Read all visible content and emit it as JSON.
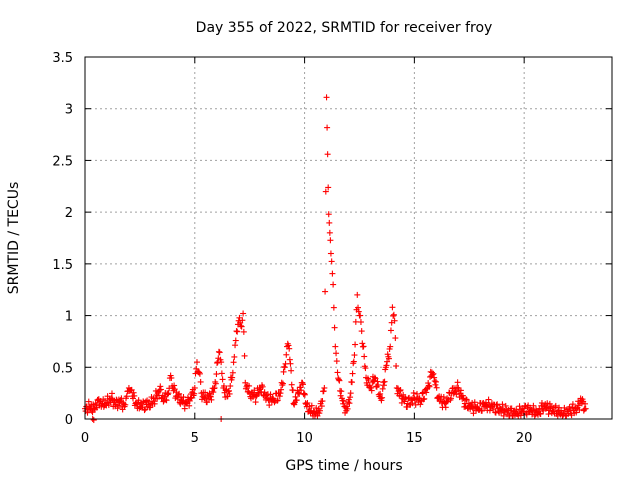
{
  "chart_data": {
    "type": "scatter",
    "title": "Day 355 of 2022, SRMTID for receiver froy",
    "xlabel": "GPS time / hours",
    "ylabel": "SRMTID / TECUs",
    "xlim": [
      0,
      24
    ],
    "ylim": [
      0,
      3.5
    ],
    "x_ticks": [
      "0",
      "5",
      "10",
      "15",
      "20"
    ],
    "y_ticks": [
      "0",
      "0.5",
      "1",
      "1.5",
      "2",
      "2.5",
      "3",
      "3.5"
    ],
    "grid": true,
    "marker": "+",
    "marker_color": "#ff0000",
    "series": [
      {
        "name": "SRMTID",
        "x": [
          0.0,
          0.2,
          0.4,
          0.6,
          0.8,
          1.0,
          1.2,
          1.4,
          1.6,
          1.8,
          1.9,
          2.0,
          2.1,
          2.3,
          2.5,
          2.8,
          3.0,
          3.2,
          3.4,
          3.6,
          3.8,
          3.9,
          4.0,
          4.2,
          4.4,
          4.6,
          4.8,
          5.0,
          5.1,
          5.2,
          5.3,
          5.5,
          5.7,
          5.9,
          6.1,
          6.2,
          6.3,
          6.5,
          6.7,
          6.8,
          6.9,
          7.0,
          7.1,
          7.2,
          7.3,
          7.5,
          7.8,
          8.0,
          8.3,
          8.6,
          8.9,
          9.1,
          9.2,
          9.3,
          9.5,
          9.7,
          9.9,
          10.1,
          10.3,
          10.5,
          10.7,
          10.9,
          11.0,
          11.05,
          11.1,
          11.15,
          11.2,
          11.3,
          11.4,
          11.5,
          11.7,
          11.9,
          12.1,
          12.3,
          12.4,
          12.5,
          12.6,
          12.8,
          13.0,
          13.2,
          13.5,
          13.7,
          13.9,
          14.0,
          14.1,
          14.2,
          14.4,
          14.7,
          15.0,
          15.3,
          15.6,
          15.8,
          15.9,
          16.1,
          16.4,
          16.7,
          17.0,
          17.3,
          17.6,
          17.9,
          18.2,
          18.5,
          18.8,
          19.1,
          19.4,
          19.7,
          20.0,
          20.3,
          20.6,
          20.9,
          21.2,
          21.5,
          21.8,
          22.1,
          22.4,
          22.6,
          22.8
        ],
        "y": [
          0.1,
          0.12,
          0.1,
          0.18,
          0.15,
          0.16,
          0.2,
          0.14,
          0.17,
          0.12,
          0.22,
          0.3,
          0.28,
          0.15,
          0.12,
          0.14,
          0.15,
          0.2,
          0.28,
          0.18,
          0.25,
          0.42,
          0.3,
          0.22,
          0.18,
          0.15,
          0.2,
          0.3,
          0.55,
          0.45,
          0.25,
          0.2,
          0.22,
          0.3,
          0.65,
          0.55,
          0.3,
          0.22,
          0.4,
          0.6,
          0.85,
          0.95,
          0.9,
          1.02,
          0.35,
          0.25,
          0.22,
          0.3,
          0.2,
          0.18,
          0.25,
          0.5,
          0.7,
          0.68,
          0.15,
          0.25,
          0.35,
          0.12,
          0.08,
          0.05,
          0.08,
          0.3,
          3.11,
          2.56,
          1.98,
          1.8,
          1.6,
          1.3,
          0.7,
          0.45,
          0.2,
          0.08,
          0.25,
          0.72,
          1.2,
          1.0,
          0.85,
          0.4,
          0.3,
          0.4,
          0.18,
          0.5,
          0.7,
          1.08,
          0.95,
          0.3,
          0.22,
          0.15,
          0.2,
          0.18,
          0.3,
          0.45,
          0.4,
          0.2,
          0.15,
          0.25,
          0.3,
          0.15,
          0.12,
          0.1,
          0.14,
          0.12,
          0.1,
          0.08,
          0.06,
          0.05,
          0.1,
          0.08,
          0.06,
          0.12,
          0.1,
          0.07,
          0.05,
          0.08,
          0.1,
          0.18,
          0.1
        ],
        "extra_points": {
          "x": [
            0.35,
            0.4,
            6.2
          ],
          "y": [
            0.0,
            -0.01,
            0.0
          ]
        }
      }
    ]
  }
}
